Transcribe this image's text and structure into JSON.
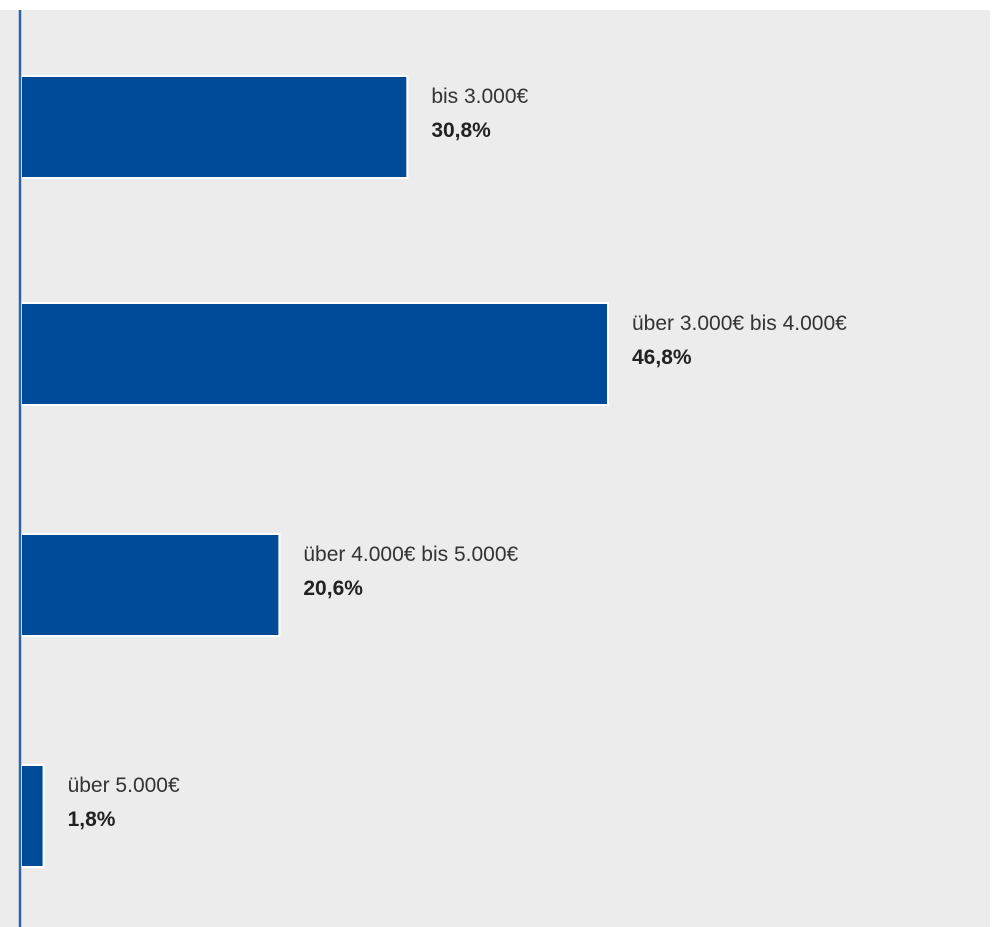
{
  "chart_data": {
    "type": "bar",
    "orientation": "horizontal",
    "categories": [
      "bis 3.000€",
      "über 3.000€ bis 4.000€",
      "über 4.000€ bis 5.000€",
      "über 5.000€"
    ],
    "values": [
      30.8,
      46.8,
      20.6,
      1.8
    ],
    "value_labels": [
      "30,8%",
      "46,8%",
      "20,6%",
      "1,8%"
    ],
    "unit": "%",
    "xlim": [
      0,
      80
    ],
    "grid": false,
    "legend": "none",
    "title": "",
    "xlabel": "",
    "ylabel": ""
  },
  "colors": {
    "background": "#ececec",
    "bar": "#004b99",
    "bar_outline": "#ffffff",
    "axis": "#2d63a8",
    "label_text": "#333333",
    "value_text": "#222222"
  }
}
